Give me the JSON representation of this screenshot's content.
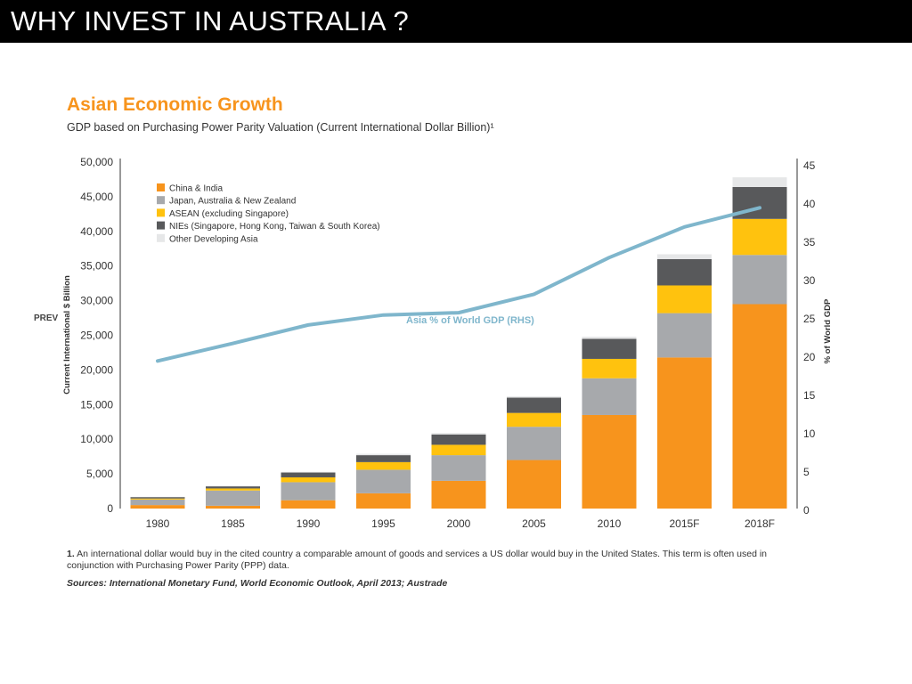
{
  "header": {
    "title": "WHY INVEST IN AUSTRALIA ?"
  },
  "side_label": "PREV",
  "footnote": {
    "number": "1.",
    "text": "An international dollar would buy in the cited country a comparable amount of goods and services a US dollar would buy in the United States. This term is often used in conjunction with Purchasing Power Parity (PPP) data."
  },
  "sources": "Sources: International Monetary Fund, World Economic Outlook, April 2013; Austrade",
  "colors": {
    "china_india": "#F7941D",
    "japan_aus_nz": "#A7A9AC",
    "asean": "#FFC20E",
    "nies": "#58595B",
    "other": "#E6E7E8",
    "line": "#7FB6CC",
    "title": "#F7941D"
  },
  "chart_data": {
    "type": "bar",
    "stacked": true,
    "title": "Asian Economic Growth",
    "subtitle": "GDP based on Purchasing Power Parity Valuation (Current International Dollar Billion)¹",
    "ylabel": "Current International $ Billion",
    "y2label": "% of World GDP",
    "categories": [
      "1980",
      "1985",
      "1990",
      "1995",
      "2000",
      "2005",
      "2010",
      "2015F",
      "2018F"
    ],
    "ylim": [
      0,
      50000
    ],
    "y_ticks": [
      "0",
      "5,000",
      "10,000",
      "15,000",
      "20,000",
      "25,000",
      "30,000",
      "35,000",
      "40,000",
      "45,000",
      "50,000"
    ],
    "y2lim": [
      0,
      45
    ],
    "y2_ticks": [
      "0",
      "5",
      "10",
      "15",
      "20",
      "25",
      "30",
      "35",
      "40",
      "45"
    ],
    "legend_position": "top-left",
    "series": [
      {
        "name": "China & India",
        "values": [
          500,
          400,
          1200,
          2200,
          4000,
          7000,
          13500,
          21800,
          29500
        ]
      },
      {
        "name": "Japan, Australia & New Zealand",
        "values": [
          800,
          2200,
          2600,
          3400,
          3700,
          4800,
          5300,
          6400,
          7100
        ]
      },
      {
        "name": "ASEAN (excluding Singapore)",
        "values": [
          150,
          300,
          700,
          1100,
          1500,
          2000,
          2800,
          4000,
          5200
        ]
      },
      {
        "name": "NIEs (Singapore, Hong Kong, Taiwan & South Korea)",
        "values": [
          200,
          300,
          700,
          1000,
          1500,
          2200,
          2900,
          3800,
          4600
        ]
      },
      {
        "name": "Other Developing Asia",
        "values": [
          50,
          100,
          100,
          200,
          200,
          200,
          300,
          700,
          1400
        ]
      }
    ],
    "line_series": {
      "name": "Asia % of World GDP (RHS)",
      "axis": "right",
      "values": [
        19.5,
        21.8,
        24.2,
        25.5,
        25.8,
        28.2,
        33.0,
        37.0,
        39.5
      ]
    }
  }
}
